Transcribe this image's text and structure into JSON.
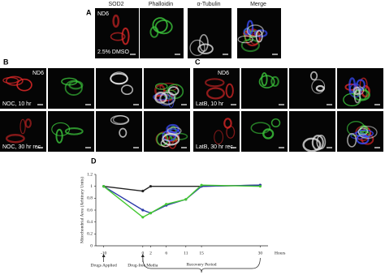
{
  "panels": {
    "a": {
      "label": "A",
      "columns": [
        "SOD2",
        "Phalloidin",
        "α-Tubulin",
        "Merge"
      ],
      "cell_label": "ND6",
      "condition": "2.5% DMSO"
    },
    "b": {
      "label": "B",
      "cell_label": "ND6",
      "conditions": [
        "NOC, 10 hr",
        "NOC, 30 hr rec."
      ]
    },
    "c": {
      "label": "C",
      "cell_label": "ND6",
      "conditions": [
        "LatB, 10 hr",
        "LatB, 30 hr rec."
      ]
    }
  },
  "chart_data": {
    "type": "line",
    "panel_label": "D",
    "y_label": "Mitochondrial Area (Arbitrary Units)",
    "x_label": "Hours",
    "xlim": [
      -12,
      32
    ],
    "xticks": [
      -10,
      0,
      2,
      6,
      11,
      15,
      30
    ],
    "ylim": [
      0,
      1.2
    ],
    "yticks": [
      0,
      0.2,
      0.4,
      0.6,
      0.8,
      1,
      1.2
    ],
    "annotations": [
      "Drugs Applied",
      "Drug-free Media",
      "Recovery Period"
    ],
    "series": [
      {
        "color": "#222222",
        "x": [
          -10,
          0,
          2,
          15,
          30
        ],
        "values": [
          1.0,
          0.92,
          1.0,
          1.0,
          1.02
        ]
      },
      {
        "color": "#2a3aa8",
        "x": [
          -10,
          0,
          2,
          6,
          11,
          15,
          30
        ],
        "values": [
          1.0,
          0.6,
          0.55,
          0.68,
          0.78,
          1.0,
          1.02
        ]
      },
      {
        "color": "#44c832",
        "x": [
          -10,
          0,
          2,
          6,
          11,
          15,
          30
        ],
        "values": [
          1.0,
          0.48,
          0.55,
          0.7,
          0.78,
          1.02,
          1.0
        ]
      }
    ]
  }
}
